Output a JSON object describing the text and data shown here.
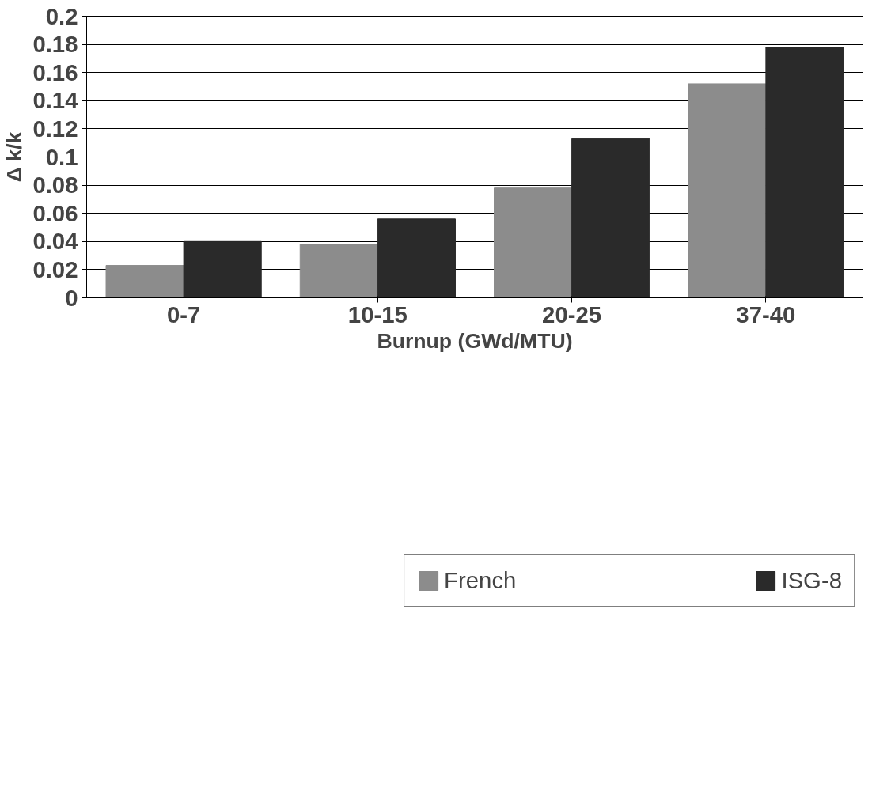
{
  "chart_data": {
    "type": "bar",
    "xlabel": "Burnup (GWd/MTU)",
    "ylabel": "Δ k/k",
    "categories": [
      "0-7",
      "10-15",
      "20-25",
      "37-40"
    ],
    "series": [
      {
        "name": "French",
        "color": "#8c8c8c",
        "values": [
          0.023,
          0.038,
          0.078,
          0.152
        ]
      },
      {
        "name": "ISG-8",
        "color": "#2a2a2a",
        "values": [
          0.04,
          0.056,
          0.113,
          0.178
        ]
      }
    ],
    "ylim": [
      0,
      0.2
    ],
    "yticks": [
      0,
      0.02,
      0.04,
      0.06,
      0.08,
      {
        "value": 0.1,
        "label": "0.1"
      },
      0.12,
      0.14,
      0.16,
      0.18,
      {
        "value": 0.2,
        "label": "0.2"
      }
    ],
    "grid": "y",
    "legend": "bottom"
  }
}
